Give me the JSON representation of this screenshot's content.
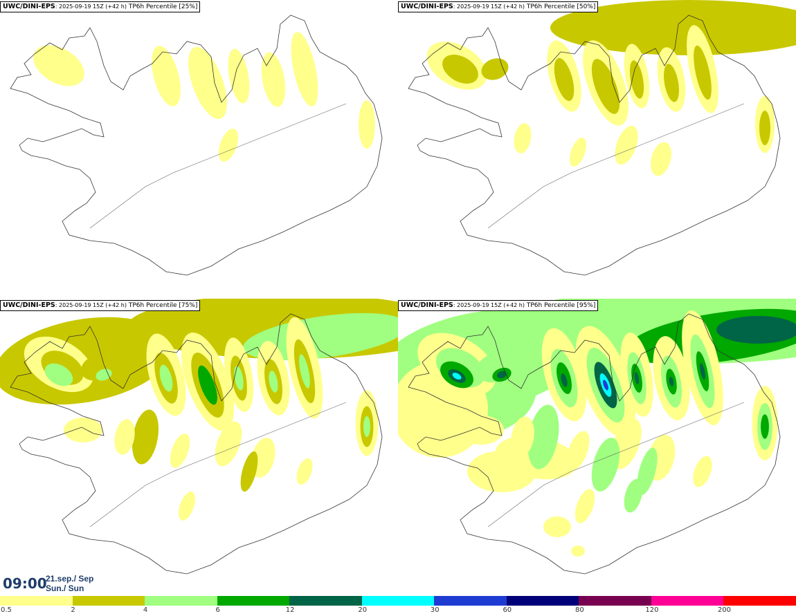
{
  "panels": [
    {
      "model": "UWC/DINI-EPS",
      "run": ": 2025-09-19 15Z (+42 h)",
      "field": " TP6h Percentile [25%]",
      "level": 1
    },
    {
      "model": "UWC/DINI-EPS",
      "run": ": 2025-09-19 15Z (+42 h)",
      "field": " TP6h Percentile [50%]",
      "level": 2
    },
    {
      "model": "UWC/DINI-EPS",
      "run": ": 2025-09-19 15Z (+42 h)",
      "field": " TP6h Percentile [75%]",
      "level": 3
    },
    {
      "model": "UWC/DINI-EPS",
      "run": ": 2025-09-19 15Z (+42 h)",
      "field": " TP6h Percentile [95%]",
      "level": 4
    }
  ],
  "valid_time": {
    "time": "09:00",
    "date_line1": "21.sep./ Sep",
    "date_line2": "Sun./ Sun"
  },
  "legend": {
    "labels": [
      "0.5",
      "2",
      "4",
      "6",
      "12",
      "20",
      "30",
      "60",
      "80",
      "120",
      "200"
    ],
    "colors": [
      "#ffff8c",
      "#c8c800",
      "#a0ff80",
      "#00a800",
      "#006446",
      "#00ffff",
      "#1e3cd2",
      "#000078",
      "#780050",
      "#ff0096",
      "#ff0000"
    ]
  }
}
